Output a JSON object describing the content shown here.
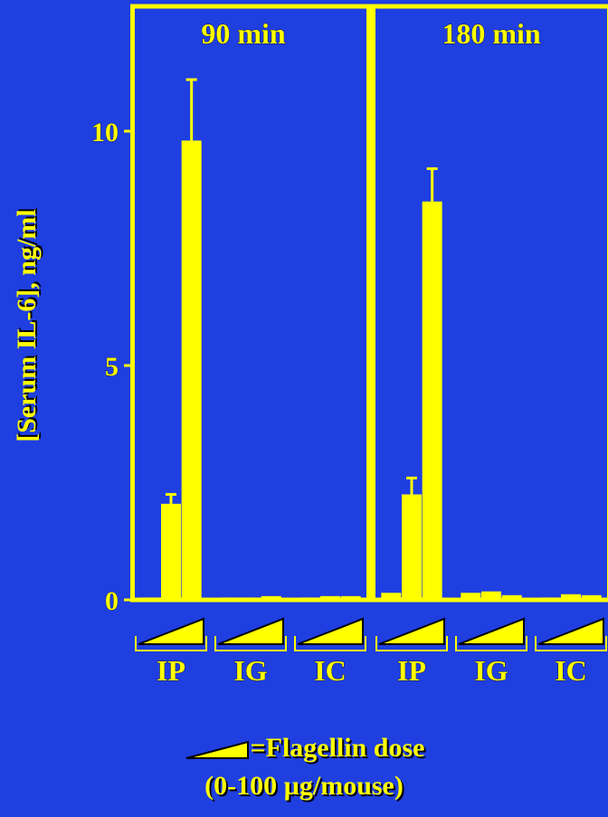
{
  "chart_data": {
    "type": "bar",
    "ylabel": "[Serum IL-6], ng/ml",
    "ylim": [
      0,
      12
    ],
    "yticks": [
      0,
      5,
      10
    ],
    "panels": [
      {
        "title": "90 min",
        "groups": [
          {
            "label": "IP",
            "values": [
              0.05,
              2.05,
              9.8
            ],
            "errors": [
              0,
              0.2,
              1.3
            ]
          },
          {
            "label": "IG",
            "values": [
              0.05,
              0.05,
              0.08
            ],
            "errors": [
              0,
              0,
              0
            ]
          },
          {
            "label": "IC",
            "values": [
              0.05,
              0.08,
              0.08
            ],
            "errors": [
              0,
              0,
              0
            ]
          }
        ]
      },
      {
        "title": "180 min",
        "groups": [
          {
            "label": "IP",
            "values": [
              0.15,
              2.25,
              8.5
            ],
            "errors": [
              0,
              0.35,
              0.7
            ]
          },
          {
            "label": "IG",
            "values": [
              0.15,
              0.18,
              0.1
            ],
            "errors": [
              0,
              0,
              0
            ]
          },
          {
            "label": "IC",
            "values": [
              0.05,
              0.12,
              0.1
            ],
            "errors": [
              0,
              0,
              0
            ]
          }
        ]
      }
    ],
    "bar_color": "#ffff00",
    "background_color": "#1f3fe0",
    "dose_symbol": "ramp-triangle-icon"
  },
  "legend": {
    "line1": "=Flagellin dose",
    "line2": "(0-100 µg/mouse)"
  }
}
